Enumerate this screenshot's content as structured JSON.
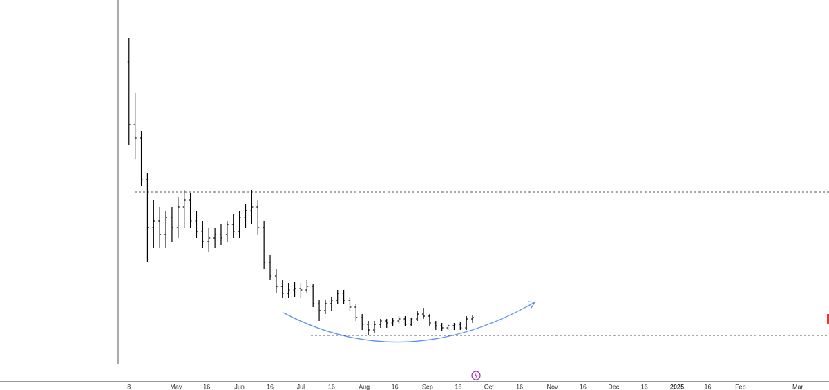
{
  "chart_data": {
    "type": "ohlc",
    "color": "#000000",
    "x": [
      7,
      10,
      13,
      16,
      19,
      22,
      25,
      28,
      31,
      34,
      37,
      40,
      43,
      46,
      49,
      52,
      55,
      58,
      61,
      64,
      67,
      70,
      73,
      76,
      79,
      82,
      85,
      88,
      91,
      94,
      97,
      100,
      103,
      106,
      109,
      112,
      115,
      118,
      121,
      124,
      127,
      130,
      133,
      136,
      139,
      142,
      145,
      148,
      151,
      154,
      157,
      160,
      163,
      166,
      169,
      172,
      175
    ],
    "open": [
      44,
      35,
      33,
      27,
      20,
      21,
      19,
      21.5,
      20,
      23,
      24,
      21,
      19.5,
      18,
      18.5,
      19,
      19,
      20.5,
      19.5,
      21.5,
      22.5,
      23,
      20,
      15,
      13,
      11.5,
      10.5,
      11,
      11.2,
      11,
      11.5,
      9,
      8,
      9,
      9.5,
      10.5,
      9.5,
      8.5,
      7,
      6,
      5.2,
      6,
      6.5,
      6.2,
      6.5,
      6.8,
      6,
      6.8,
      7.5,
      7.2,
      6.2,
      5.8,
      5.5,
      5.8,
      6,
      5.5,
      6.8
    ],
    "high": [
      47.5,
      39.5,
      34,
      28,
      24,
      23,
      22.5,
      23,
      24.5,
      25.5,
      25,
      22.5,
      21,
      20,
      20,
      20.5,
      21,
      22,
      22.5,
      23.5,
      25.5,
      24,
      21,
      16,
      14,
      12.5,
      12,
      12.2,
      12,
      12.5,
      11.8,
      9.5,
      9.5,
      10,
      11,
      11,
      10,
      9,
      7.5,
      6.5,
      6.5,
      6.8,
      6.8,
      7,
      7.2,
      7.2,
      7,
      8,
      8.4,
      7.5,
      6.5,
      6.2,
      6,
      6.2,
      6.4,
      7.2,
      7.4
    ],
    "low": [
      32,
      30,
      26,
      15,
      17,
      17,
      17,
      18,
      18.5,
      20,
      20,
      18.5,
      17,
      16.5,
      17,
      17.5,
      18,
      18.5,
      18.5,
      20,
      20.5,
      19,
      14,
      12.5,
      10.5,
      9.8,
      9.8,
      10,
      9.8,
      10.5,
      8.5,
      6.5,
      7.5,
      8,
      9,
      9,
      8,
      6.5,
      5.2,
      4.5,
      4.8,
      5.5,
      5.5,
      5.8,
      6,
      5.8,
      5.8,
      6.5,
      6.8,
      5.8,
      5.2,
      5,
      5.2,
      5.2,
      5.2,
      5.2,
      6.2
    ],
    "close": [
      35,
      33,
      27,
      20,
      21,
      19,
      21.5,
      20,
      23,
      24,
      21,
      19.5,
      18,
      18.5,
      19,
      18.5,
      20.5,
      19.5,
      21.5,
      22.5,
      23,
      20,
      15,
      13,
      11.5,
      10.5,
      11,
      11.2,
      11,
      11.5,
      9,
      8,
      9,
      9.5,
      10.5,
      9.5,
      8.5,
      7,
      6,
      5.2,
      6,
      6.5,
      6.2,
      6.5,
      6.8,
      6,
      6.8,
      7.5,
      7.2,
      6.2,
      5.8,
      5.5,
      5.8,
      6,
      5.5,
      6.8,
      7
    ],
    "levels": [
      25.2,
      4.4
    ],
    "xlim": [
      -56.1,
      349.3
    ],
    "ylim": [
      0,
      53
    ],
    "xticks": [
      {
        "value": 7,
        "label": "8"
      },
      {
        "value": 30,
        "label": "May"
      },
      {
        "value": 45,
        "label": "16"
      },
      {
        "value": 61,
        "label": "Jun"
      },
      {
        "value": 76,
        "label": "16"
      },
      {
        "value": 91,
        "label": "Jul"
      },
      {
        "value": 106,
        "label": "16"
      },
      {
        "value": 122,
        "label": "Aug"
      },
      {
        "value": 137,
        "label": "16"
      },
      {
        "value": 153,
        "label": "Sep"
      },
      {
        "value": 168,
        "label": "16"
      },
      {
        "value": 183,
        "label": "Oct"
      },
      {
        "value": 198,
        "label": "16"
      },
      {
        "value": 214,
        "label": "Nov"
      },
      {
        "value": 229,
        "label": "16"
      },
      {
        "value": 244,
        "label": "Dec"
      },
      {
        "value": 259,
        "label": "16"
      },
      {
        "value": 275,
        "label": "2025"
      },
      {
        "value": 290,
        "label": "16"
      },
      {
        "value": 306,
        "label": "Feb"
      },
      {
        "value": 334,
        "label": "Mar"
      }
    ]
  }
}
